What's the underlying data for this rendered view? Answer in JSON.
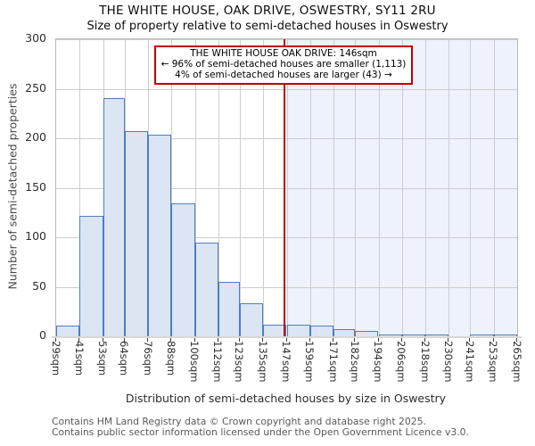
{
  "title": "THE WHITE HOUSE, OAK DRIVE, OSWESTRY, SY11 2RU",
  "subtitle": "Size of property relative to semi-detached houses in Oswestry",
  "annotation": {
    "line1": "THE WHITE HOUSE OAK DRIVE: 146sqm",
    "line2": "← 96% of semi-detached houses are smaller (1,113)",
    "line3": "4% of semi-detached houses are larger (43) →"
  },
  "chart_data": {
    "type": "bar",
    "title": "THE WHITE HOUSE, OAK DRIVE, OSWESTRY, SY11 2RU",
    "subtitle": "Size of property relative to semi-detached houses in Oswestry",
    "xlabel": "Distribution of semi-detached houses by size in Oswestry",
    "ylabel": "Number of semi-detached properties",
    "ylim": [
      0,
      300
    ],
    "yticks": [
      0,
      50,
      100,
      150,
      200,
      250,
      300
    ],
    "x_range_sqm": [
      29,
      265
    ],
    "tick_values": [
      29,
      41,
      53,
      64,
      76,
      88,
      100,
      112,
      123,
      135,
      147,
      159,
      171,
      182,
      194,
      206,
      218,
      230,
      241,
      253,
      265
    ],
    "tick_labels": [
      "29sqm",
      "41sqm",
      "53sqm",
      "64sqm",
      "76sqm",
      "88sqm",
      "100sqm",
      "112sqm",
      "123sqm",
      "135sqm",
      "147sqm",
      "159sqm",
      "171sqm",
      "182sqm",
      "194sqm",
      "206sqm",
      "218sqm",
      "230sqm",
      "241sqm",
      "253sqm",
      "265sqm"
    ],
    "values": [
      11,
      122,
      241,
      207,
      204,
      134,
      95,
      55,
      33,
      12,
      12,
      11,
      7,
      5,
      2,
      1,
      1,
      0,
      1,
      2
    ],
    "marker_sqm": 146,
    "smaller_count": "1,113",
    "larger_count": "43",
    "grid": true,
    "legend": "none"
  },
  "footer": {
    "line1": "Contains HM Land Registry data © Crown copyright and database right 2025.",
    "line2": "Contains public sector information licensed under the Open Government Licence v3.0."
  },
  "colors": {
    "bar_fill": "#dbe5f4",
    "bar_border": "#4d7ebf",
    "marker_red": "#c00000",
    "shade_right": "#edf2fb",
    "gridline": "#cdcdcd"
  }
}
